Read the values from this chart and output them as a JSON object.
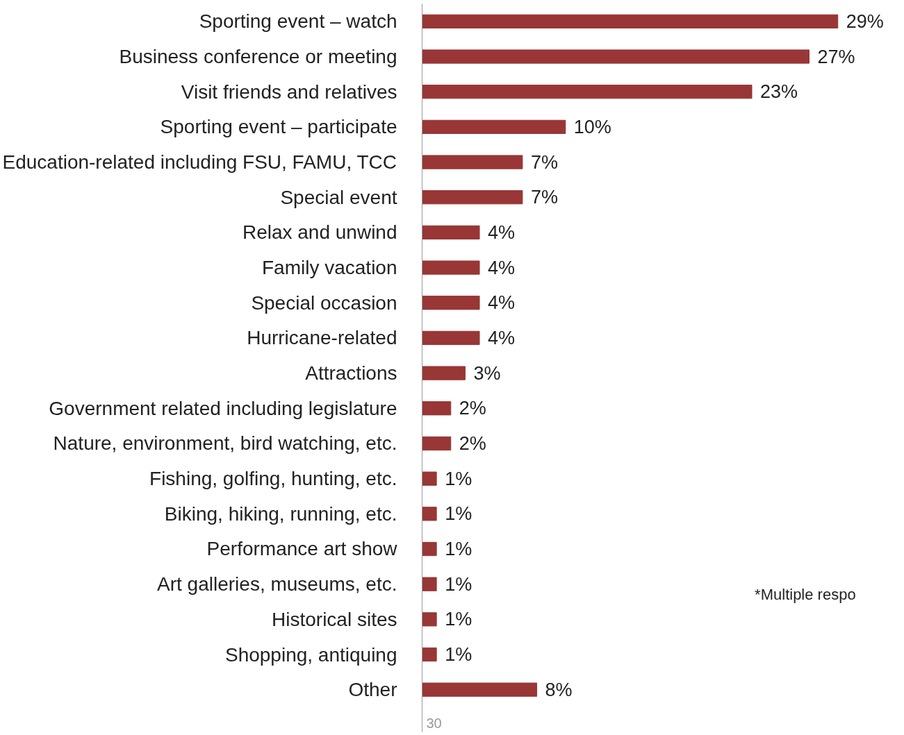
{
  "chart_data": {
    "type": "bar",
    "orientation": "horizontal",
    "categories": [
      "Sporting event – watch",
      "Business conference or meeting",
      "Visit friends and relatives",
      "Sporting event – participate",
      "Education-related including FSU, FAMU, TCC",
      "Special event",
      "Relax and unwind",
      "Family vacation",
      "Special occasion",
      "Hurricane-related",
      "Attractions",
      "Government related including legislature",
      "Nature, environment, bird watching, etc.",
      "Fishing, golfing, hunting, etc.",
      "Biking, hiking, running, etc.",
      "Performance art show",
      "Art galleries, museums, etc.",
      "Historical sites",
      "Shopping, antiquing",
      "Other"
    ],
    "values": [
      29,
      27,
      23,
      10,
      7,
      7,
      4,
      4,
      4,
      4,
      3,
      2,
      2,
      1,
      1,
      1,
      1,
      1,
      1,
      8
    ],
    "value_labels": [
      "29%",
      "27%",
      "23%",
      "10%",
      "7%",
      "7%",
      "4%",
      "4%",
      "4%",
      "4%",
      "3%",
      "2%",
      "2%",
      "1%",
      "1%",
      "1%",
      "1%",
      "1%",
      "1%",
      "8%"
    ],
    "color": "#993636",
    "annotations": [
      "*Multiple respo",
      "30"
    ]
  }
}
